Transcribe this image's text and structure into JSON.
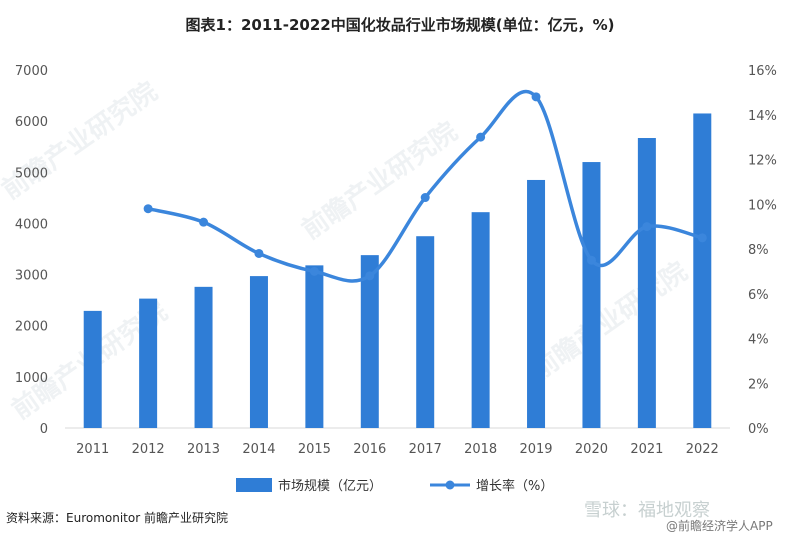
{
  "chart_data": {
    "type": "bar+line",
    "title": "图表1：2011-2022中国化妆品行业市场规模(单位：亿元，%)",
    "categories": [
      "2011",
      "2012",
      "2013",
      "2014",
      "2015",
      "2016",
      "2017",
      "2018",
      "2019",
      "2020",
      "2021",
      "2022"
    ],
    "series": [
      {
        "name": "市场规模（亿元）",
        "type": "bar",
        "axis": "left",
        "values": [
          2290,
          2530,
          2760,
          2970,
          3180,
          3380,
          3750,
          4220,
          4850,
          5200,
          5670,
          6150
        ]
      },
      {
        "name": "增长率（%）",
        "type": "line",
        "axis": "right",
        "values": [
          null,
          9.8,
          9.2,
          7.8,
          7.0,
          6.8,
          10.3,
          13.0,
          14.8,
          7.5,
          9.0,
          8.5
        ]
      }
    ],
    "ylim_left": [
      0,
      7000
    ],
    "yticks_left": [
      "0",
      "1000",
      "2000",
      "3000",
      "4000",
      "5000",
      "6000",
      "7000"
    ],
    "ylim_right": [
      0,
      16
    ],
    "yticks_right": [
      "0%",
      "2%",
      "4%",
      "6%",
      "8%",
      "10%",
      "12%",
      "14%",
      "16%"
    ],
    "legend_position": "bottom",
    "colors": {
      "bar": "#2f7dd6",
      "line": "#3b86dc"
    }
  },
  "source": "资料来源：Euromonitor 前瞻产业研究院",
  "watermark": {
    "brand": "前瞻产业研究院",
    "xueqiu": "雪球：福地观察",
    "app": "@前瞻经济学人APP"
  }
}
